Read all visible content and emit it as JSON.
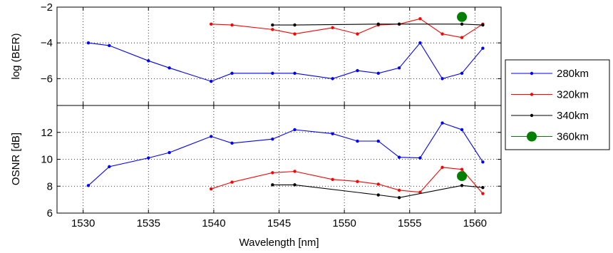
{
  "chart_data": [
    {
      "type": "line",
      "ylabel": "log (BER)",
      "xlabel": "",
      "xlim": [
        1528,
        1562
      ],
      "ylim": [
        -7.5,
        -2
      ],
      "x_ticks": [
        1530,
        1535,
        1540,
        1545,
        1550,
        1555,
        1560
      ],
      "y_ticks": [
        -6,
        -4,
        -2
      ],
      "y_tick_labels": [
        "−6",
        "−4",
        "−2"
      ],
      "grid": true,
      "series": [
        {
          "name": "280km",
          "color": "#0000ff",
          "points": [
            [
              1530.4,
              -4.0
            ],
            [
              1532.0,
              -4.15
            ],
            [
              1535.0,
              -5.0
            ],
            [
              1536.6,
              -5.4
            ],
            [
              1539.8,
              -6.15
            ],
            [
              1541.4,
              -5.7
            ],
            [
              1544.5,
              -5.7
            ],
            [
              1546.2,
              -5.7
            ],
            [
              1549.1,
              -6.0
            ],
            [
              1551.0,
              -5.55
            ],
            [
              1552.6,
              -5.7
            ],
            [
              1554.2,
              -5.4
            ],
            [
              1555.8,
              -4.0
            ],
            [
              1557.5,
              -6.0
            ],
            [
              1559.0,
              -5.7
            ],
            [
              1560.6,
              -4.3
            ]
          ]
        },
        {
          "name": "320km",
          "color": "#ff0000",
          "points": [
            [
              1539.8,
              -2.95
            ],
            [
              1541.4,
              -3.0
            ],
            [
              1544.5,
              -3.25
            ],
            [
              1546.2,
              -3.5
            ],
            [
              1549.1,
              -3.15
            ],
            [
              1551.0,
              -3.5
            ],
            [
              1552.6,
              -3.0
            ],
            [
              1554.2,
              -2.95
            ],
            [
              1555.8,
              -2.65
            ],
            [
              1557.5,
              -3.5
            ],
            [
              1559.0,
              -3.7
            ],
            [
              1560.6,
              -2.95
            ]
          ]
        },
        {
          "name": "340km",
          "color": "#000000",
          "points": [
            [
              1544.5,
              -3.0
            ],
            [
              1546.2,
              -3.0
            ],
            [
              1552.6,
              -2.95
            ],
            [
              1554.2,
              -2.95
            ],
            [
              1559.0,
              -2.95
            ],
            [
              1560.6,
              -3.0
            ]
          ]
        },
        {
          "name": "360km",
          "color": "#008000",
          "marker": "big",
          "points": [
            [
              1559.0,
              -2.55
            ]
          ]
        }
      ]
    },
    {
      "type": "line",
      "ylabel": "OSNR [dB]",
      "xlabel": "Wavelength [nm]",
      "xlim": [
        1528,
        1562
      ],
      "ylim": [
        6,
        14
      ],
      "x_ticks": [
        1530,
        1535,
        1540,
        1545,
        1550,
        1555,
        1560
      ],
      "y_ticks": [
        6,
        8,
        10,
        12
      ],
      "y_tick_labels": [
        "6",
        "8",
        "10",
        "12"
      ],
      "grid": true,
      "series": [
        {
          "name": "280km",
          "color": "#0000ff",
          "points": [
            [
              1530.4,
              8.05
            ],
            [
              1532.0,
              9.45
            ],
            [
              1535.0,
              10.1
            ],
            [
              1536.6,
              10.5
            ],
            [
              1539.8,
              11.7
            ],
            [
              1541.4,
              11.2
            ],
            [
              1544.5,
              11.5
            ],
            [
              1546.2,
              12.2
            ],
            [
              1549.1,
              11.9
            ],
            [
              1551.0,
              11.35
            ],
            [
              1552.6,
              11.35
            ],
            [
              1554.2,
              10.15
            ],
            [
              1555.8,
              10.1
            ],
            [
              1557.5,
              12.7
            ],
            [
              1559.0,
              12.2
            ],
            [
              1560.6,
              9.8
            ]
          ]
        },
        {
          "name": "320km",
          "color": "#ff0000",
          "points": [
            [
              1539.8,
              7.8
            ],
            [
              1541.4,
              8.3
            ],
            [
              1544.5,
              9.0
            ],
            [
              1546.2,
              9.1
            ],
            [
              1549.1,
              8.5
            ],
            [
              1551.0,
              8.35
            ],
            [
              1552.6,
              8.15
            ],
            [
              1554.2,
              7.7
            ],
            [
              1555.8,
              7.55
            ],
            [
              1557.5,
              9.4
            ],
            [
              1559.0,
              9.25
            ],
            [
              1560.6,
              7.45
            ]
          ]
        },
        {
          "name": "340km",
          "color": "#000000",
          "points": [
            [
              1544.5,
              8.1
            ],
            [
              1546.2,
              8.1
            ],
            [
              1552.6,
              7.35
            ],
            [
              1554.2,
              7.15
            ],
            [
              1559.0,
              8.05
            ],
            [
              1560.6,
              7.9
            ]
          ]
        },
        {
          "name": "360km",
          "color": "#008000",
          "marker": "big",
          "points": [
            [
              1559.0,
              8.75
            ]
          ]
        }
      ]
    }
  ],
  "legend": {
    "placement": "right",
    "entries": [
      {
        "label": "280km",
        "color": "#0000ff",
        "marker": "dot"
      },
      {
        "label": "320km",
        "color": "#ff0000",
        "marker": "dot"
      },
      {
        "label": "340km",
        "color": "#000000",
        "marker": "dot"
      },
      {
        "label": "360km",
        "color": "#008000",
        "marker": "big"
      }
    ]
  }
}
